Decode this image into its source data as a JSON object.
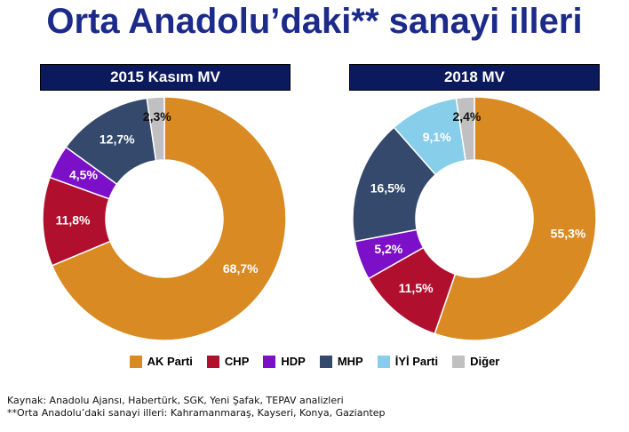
{
  "title": "Orta Anadolu’daki** sanayi illeri",
  "chart_data": [
    {
      "type": "pie",
      "title": "2015 Kasım MV",
      "categories": [
        "AK Parti",
        "CHP",
        "HDP",
        "MHP",
        "İYİ Parti",
        "Diğer"
      ],
      "values": [
        68.7,
        11.8,
        4.5,
        12.7,
        null,
        2.3
      ],
      "value_labels": [
        "68,7%",
        "11,8%",
        "4,5%",
        "12,7%",
        "",
        "2,3%"
      ]
    },
    {
      "type": "pie",
      "title": "2018 MV",
      "categories": [
        "AK Parti",
        "CHP",
        "HDP",
        "MHP",
        "İYİ Parti",
        "Diğer"
      ],
      "values": [
        55.3,
        11.5,
        5.2,
        16.5,
        9.1,
        2.4
      ],
      "value_labels": [
        "55,3%",
        "11,5%",
        "5,2%",
        "16,5%",
        "9,1%",
        "2,4%"
      ]
    }
  ],
  "legend": [
    {
      "label": "AK Parti",
      "color": "#d98a22"
    },
    {
      "label": "CHP",
      "color": "#b0102e"
    },
    {
      "label": "HDP",
      "color": "#7b10c8"
    },
    {
      "label": "MHP",
      "color": "#34496b"
    },
    {
      "label": "İYİ Parti",
      "color": "#87ceeb"
    },
    {
      "label": "Diğer",
      "color": "#c0c0c0"
    }
  ],
  "footnotes": [
    "Kaynak:  Anadolu Ajansı, Habertürk, SGK, Yeni Şafak,  TEPAV analizleri",
    "**Orta Anadolu’daki sanayi illeri:  Kahramanmaraş,  Kayseri, Konya, Gaziantep"
  ]
}
